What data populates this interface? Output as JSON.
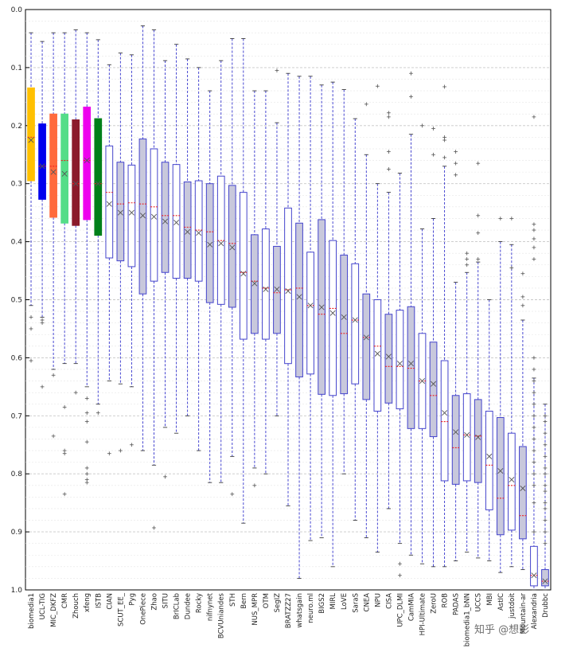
{
  "chart_data": {
    "type": "box",
    "ylim": [
      0.0,
      1.0
    ],
    "y_inverted": true,
    "y_ticks": [
      "0.0",
      "0.1",
      "0.2",
      "0.3",
      "0.4",
      "0.5",
      "0.6",
      "0.7",
      "0.8",
      "0.9",
      "1.0"
    ],
    "grid": true,
    "categories": [
      {
        "name": "biomedia1",
        "q1": 0.135,
        "q3": 0.295,
        "median": 0.22,
        "mean": 0.225,
        "wlo": 0.04,
        "whi": 0.51,
        "fill": "#FFC000",
        "out": [
          0.53,
          0.55,
          0.605
        ]
      },
      {
        "name": "UCL-TIG",
        "q1": 0.197,
        "q3": 0.327,
        "median": 0.27,
        "mean": 0.27,
        "wlo": 0.055,
        "whi": 0.53,
        "fill": "#0000EE",
        "out": [
          0.535,
          0.54,
          0.65
        ]
      },
      {
        "name": "MIC_DKFZ",
        "q1": 0.18,
        "q3": 0.358,
        "median": 0.27,
        "mean": 0.28,
        "wlo": 0.04,
        "whi": 0.62,
        "fill": "#FF6A3D",
        "out": [
          0.63,
          0.735
        ]
      },
      {
        "name": "CMR",
        "q1": 0.18,
        "q3": 0.368,
        "median": 0.26,
        "mean": 0.283,
        "wlo": 0.04,
        "whi": 0.61,
        "fill": "#55DD88",
        "out": [
          0.685,
          0.76,
          0.765,
          0.835
        ]
      },
      {
        "name": "Zhouch",
        "q1": 0.19,
        "q3": 0.372,
        "median": 0.3,
        "mean": 0.3,
        "wlo": 0.035,
        "whi": 0.61,
        "fill": "#8B1A2B",
        "out": [
          0.66
        ]
      },
      {
        "name": "xfeng",
        "q1": 0.168,
        "q3": 0.362,
        "median": 0.26,
        "mean": 0.26,
        "wlo": 0.04,
        "whi": 0.65,
        "fill": "#EE00EE",
        "out": [
          0.67,
          0.695,
          0.71,
          0.745,
          0.79,
          0.8,
          0.81,
          0.815
        ]
      },
      {
        "name": "ISTB",
        "q1": 0.188,
        "q3": 0.389,
        "median": 0.3,
        "mean": 0.3,
        "wlo": 0.052,
        "whi": 0.68,
        "fill": "#00801A",
        "out": [
          0.695
        ]
      },
      {
        "name": "CIAN",
        "q1": 0.235,
        "q3": 0.428,
        "median": 0.315,
        "mean": 0.335,
        "wlo": 0.095,
        "whi": 0.64,
        "fill": "#FFFFFF",
        "out": [
          0.765
        ]
      },
      {
        "name": "SCUT_EE_",
        "q1": 0.263,
        "q3": 0.433,
        "median": 0.335,
        "mean": 0.35,
        "wlo": 0.075,
        "whi": 0.645,
        "fill": "#C8C8DC",
        "out": [
          0.76
        ]
      },
      {
        "name": "Pyg",
        "q1": 0.268,
        "q3": 0.443,
        "median": 0.333,
        "mean": 0.35,
        "wlo": 0.078,
        "whi": 0.65,
        "fill": "#FFFFFF",
        "out": [
          0.75
        ]
      },
      {
        "name": "OnePiece",
        "q1": 0.223,
        "q3": 0.49,
        "median": 0.335,
        "mean": 0.355,
        "wlo": 0.028,
        "whi": 0.76,
        "fill": "#C8C8DC",
        "out": []
      },
      {
        "name": "Zhao",
        "q1": 0.24,
        "q3": 0.468,
        "median": 0.34,
        "mean": 0.357,
        "wlo": 0.035,
        "whi": 0.785,
        "fill": "#FFFFFF",
        "out": [
          0.893
        ]
      },
      {
        "name": "SITU",
        "q1": 0.263,
        "q3": 0.453,
        "median": 0.355,
        "mean": 0.365,
        "wlo": 0.088,
        "whi": 0.72,
        "fill": "#C8C8DC",
        "out": [
          0.805
        ]
      },
      {
        "name": "BrICLab",
        "q1": 0.267,
        "q3": 0.463,
        "median": 0.355,
        "mean": 0.367,
        "wlo": 0.06,
        "whi": 0.73,
        "fill": "#FFFFFF",
        "out": []
      },
      {
        "name": "Dundee",
        "q1": 0.297,
        "q3": 0.463,
        "median": 0.375,
        "mean": 0.383,
        "wlo": 0.085,
        "whi": 0.7,
        "fill": "#C8C8DC",
        "out": []
      },
      {
        "name": "Rocky",
        "q1": 0.295,
        "q3": 0.468,
        "median": 0.38,
        "mean": 0.385,
        "wlo": 0.1,
        "whi": 0.76,
        "fill": "#FFFFFF",
        "out": []
      },
      {
        "name": "nifnynet",
        "q1": 0.3,
        "q3": 0.505,
        "median": 0.383,
        "mean": 0.405,
        "wlo": 0.14,
        "whi": 0.815,
        "fill": "#C8C8DC",
        "out": []
      },
      {
        "name": "BCVUniandes",
        "q1": 0.287,
        "q3": 0.508,
        "median": 0.398,
        "mean": 0.403,
        "wlo": 0.088,
        "whi": 0.815,
        "fill": "#FFFFFF",
        "out": []
      },
      {
        "name": "STH",
        "q1": 0.303,
        "q3": 0.513,
        "median": 0.403,
        "mean": 0.41,
        "wlo": 0.05,
        "whi": 0.77,
        "fill": "#C8C8DC",
        "out": [
          0.835
        ]
      },
      {
        "name": "Bern",
        "q1": 0.315,
        "q3": 0.568,
        "median": 0.453,
        "mean": 0.455,
        "wlo": 0.05,
        "whi": 0.885,
        "fill": "#FFFFFF",
        "out": []
      },
      {
        "name": "NUS_MPR",
        "q1": 0.388,
        "q3": 0.558,
        "median": 0.468,
        "mean": 0.472,
        "wlo": 0.14,
        "whi": 0.79,
        "fill": "#C8C8DC",
        "out": [
          0.82
        ]
      },
      {
        "name": "OTM",
        "q1": 0.378,
        "q3": 0.568,
        "median": 0.48,
        "mean": 0.482,
        "wlo": 0.14,
        "whi": 0.8,
        "fill": "#FFFFFF",
        "out": []
      },
      {
        "name": "SegIZ",
        "q1": 0.408,
        "q3": 0.558,
        "median": 0.488,
        "mean": 0.482,
        "wlo": 0.195,
        "whi": 0.7,
        "fill": "#C8C8DC",
        "out": [
          0.105
        ]
      },
      {
        "name": "BRATZZ27",
        "q1": 0.342,
        "q3": 0.61,
        "median": 0.483,
        "mean": 0.485,
        "wlo": 0.11,
        "whi": 0.855,
        "fill": "#FFFFFF",
        "out": []
      },
      {
        "name": "whatsgain",
        "q1": 0.368,
        "q3": 0.633,
        "median": 0.48,
        "mean": 0.495,
        "wlo": 0.115,
        "whi": 0.98,
        "fill": "#C8C8DC",
        "out": []
      },
      {
        "name": "neuro.ml",
        "q1": 0.418,
        "q3": 0.628,
        "median": 0.51,
        "mean": 0.51,
        "wlo": 0.115,
        "whi": 0.915,
        "fill": "#FFFFFF",
        "out": []
      },
      {
        "name": "BIGS2",
        "q1": 0.362,
        "q3": 0.663,
        "median": 0.525,
        "mean": 0.513,
        "wlo": 0.13,
        "whi": 0.91,
        "fill": "#C8C8DC",
        "out": []
      },
      {
        "name": "MIRL",
        "q1": 0.398,
        "q3": 0.665,
        "median": 0.515,
        "mean": 0.523,
        "wlo": 0.125,
        "whi": 0.96,
        "fill": "#FFFFFF",
        "out": []
      },
      {
        "name": "LoVE",
        "q1": 0.423,
        "q3": 0.662,
        "median": 0.558,
        "mean": 0.53,
        "wlo": 0.138,
        "whi": 0.8,
        "fill": "#C8C8DC",
        "out": []
      },
      {
        "name": "SaraS",
        "q1": 0.438,
        "q3": 0.645,
        "median": 0.535,
        "mean": 0.535,
        "wlo": 0.188,
        "whi": 0.88,
        "fill": "#FFFFFF",
        "out": []
      },
      {
        "name": "CNEA",
        "q1": 0.49,
        "q3": 0.672,
        "median": 0.565,
        "mean": 0.565,
        "wlo": 0.25,
        "whi": 0.91,
        "fill": "#C8C8DC",
        "out": [
          0.163
        ]
      },
      {
        "name": "NPU",
        "q1": 0.5,
        "q3": 0.692,
        "median": 0.58,
        "mean": 0.593,
        "wlo": 0.3,
        "whi": 0.935,
        "fill": "#FFFFFF",
        "out": [
          0.132
        ]
      },
      {
        "name": "CISA",
        "q1": 0.525,
        "q3": 0.678,
        "median": 0.615,
        "mean": 0.598,
        "wlo": 0.315,
        "whi": 0.86,
        "fill": "#C8C8DC",
        "out": [
          0.178,
          0.185,
          0.245,
          0.275
        ]
      },
      {
        "name": "UPC_DLMI",
        "q1": 0.518,
        "q3": 0.688,
        "median": 0.615,
        "mean": 0.61,
        "wlo": 0.282,
        "whi": 0.92,
        "fill": "#FFFFFF",
        "out": [
          0.955,
          0.975
        ]
      },
      {
        "name": "CamMIA",
        "q1": 0.512,
        "q3": 0.722,
        "median": 0.618,
        "mean": 0.61,
        "wlo": 0.215,
        "whi": 0.94,
        "fill": "#C8C8DC",
        "out": [
          0.11,
          0.15
        ]
      },
      {
        "name": "HPI-Ultimate",
        "q1": 0.558,
        "q3": 0.722,
        "median": 0.64,
        "mean": 0.64,
        "wlo": 0.378,
        "whi": 0.955,
        "fill": "#FFFFFF",
        "out": [
          0.2
        ]
      },
      {
        "name": "ZeroU",
        "q1": 0.573,
        "q3": 0.736,
        "median": 0.665,
        "mean": 0.645,
        "wlo": 0.36,
        "whi": 0.96,
        "fill": "#C8C8DC",
        "out": [
          0.205,
          0.25
        ]
      },
      {
        "name": "ROB",
        "q1": 0.605,
        "q3": 0.812,
        "median": 0.71,
        "mean": 0.695,
        "wlo": 0.27,
        "whi": 0.96,
        "fill": "#FFFFFF",
        "out": [
          0.133,
          0.22,
          0.225,
          0.255
        ]
      },
      {
        "name": "PADAS",
        "q1": 0.665,
        "q3": 0.818,
        "median": 0.755,
        "mean": 0.728,
        "wlo": 0.47,
        "whi": 0.95,
        "fill": "#C8C8DC",
        "out": [
          0.245,
          0.265,
          0.285
        ]
      },
      {
        "name": "biomedia1_bNN",
        "q1": 0.662,
        "q3": 0.812,
        "median": 0.733,
        "mean": 0.733,
        "wlo": 0.453,
        "whi": 0.935,
        "fill": "#FFFFFF",
        "out": [
          0.42,
          0.43,
          0.44
        ]
      },
      {
        "name": "UCCS",
        "q1": 0.672,
        "q3": 0.815,
        "median": 0.735,
        "mean": 0.737,
        "wlo": 0.435,
        "whi": 0.945,
        "fill": "#C8C8DC",
        "out": [
          0.265,
          0.355,
          0.385,
          0.43
        ]
      },
      {
        "name": "MBI",
        "q1": 0.692,
        "q3": 0.862,
        "median": 0.785,
        "mean": 0.77,
        "wlo": 0.5,
        "whi": 0.95,
        "fill": "#FFFFFF",
        "out": []
      },
      {
        "name": "AstIC",
        "q1": 0.703,
        "q3": 0.905,
        "median": 0.842,
        "mean": 0.795,
        "wlo": 0.4,
        "whi": 0.97,
        "fill": "#C8C8DC",
        "out": [
          0.36
        ]
      },
      {
        "name": "justdoit",
        "q1": 0.73,
        "q3": 0.897,
        "median": 0.82,
        "mean": 0.81,
        "wlo": 0.405,
        "whi": 0.96,
        "fill": "#FFFFFF",
        "out": [
          0.36,
          0.445
        ]
      },
      {
        "name": "Mountain-ar",
        "q1": 0.753,
        "q3": 0.912,
        "median": 0.872,
        "mean": 0.825,
        "wlo": 0.535,
        "whi": 0.965,
        "fill": "#C8C8DC",
        "out": [
          0.455,
          0.495,
          0.51
        ]
      },
      {
        "name": "Alexandria",
        "q1": 0.925,
        "q3": 0.993,
        "median": 0.975,
        "mean": 0.975,
        "wlo": 0.635,
        "whi": 1.0,
        "fill": "#FFFFFF",
        "out": [
          0.185,
          0.37,
          0.38,
          0.395,
          0.41,
          0.43,
          0.6,
          0.62,
          0.64,
          0.66,
          0.68,
          0.7,
          0.72,
          0.74,
          0.76,
          0.78,
          0.8,
          0.82,
          0.85,
          0.9
        ]
      },
      {
        "name": "Drubbc",
        "q1": 0.965,
        "q3": 0.993,
        "median": 0.985,
        "mean": 0.985,
        "wlo": 0.68,
        "whi": 1.0,
        "fill": "#C8C8DC",
        "out": [
          0.7,
          0.71,
          0.73,
          0.75,
          0.77,
          0.79,
          0.8,
          0.82,
          0.83,
          0.85,
          0.86,
          0.88,
          0.9,
          0.92
        ]
      }
    ]
  },
  "watermark": "知乎 @想影"
}
